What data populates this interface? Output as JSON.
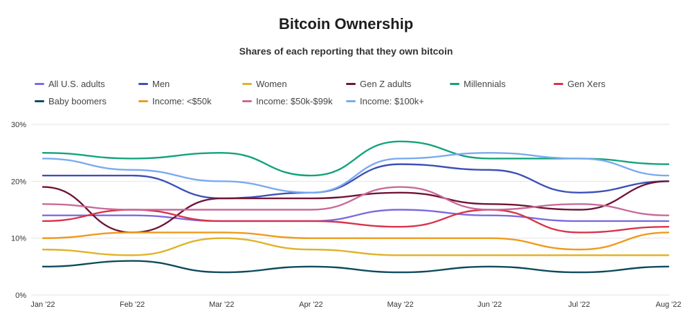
{
  "chart_data": {
    "type": "line",
    "title": "Bitcoin Ownership",
    "subtitle": "Shares of each reporting that they own bitcoin",
    "xlabel": "",
    "ylabel": "",
    "categories": [
      "Jan '22",
      "Feb '22",
      "Mar '22",
      "Apr '22",
      "May '22",
      "Jun '22",
      "Jul '22",
      "Aug '22"
    ],
    "ylim": [
      0,
      30
    ],
    "yticks": [
      0,
      10,
      20,
      30
    ],
    "ytick_labels": [
      "0%",
      "10%",
      "20%",
      "30%"
    ],
    "grid": true,
    "legend_position": "top",
    "series": [
      {
        "name": "All U.S. adults",
        "color": "#7b6ae0",
        "values": [
          14,
          14,
          13,
          13,
          15,
          14,
          13,
          13
        ]
      },
      {
        "name": "Men",
        "color": "#3c4fb8",
        "values": [
          21,
          21,
          17,
          18,
          23,
          22,
          18,
          20
        ]
      },
      {
        "name": "Women",
        "color": "#e0b22a",
        "values": [
          8,
          7,
          10,
          8,
          7,
          7,
          7,
          7
        ]
      },
      {
        "name": "Gen Z adults",
        "color": "#6e1437",
        "values": [
          19,
          11,
          17,
          17,
          18,
          16,
          15,
          20
        ]
      },
      {
        "name": "Millennials",
        "color": "#12a37a",
        "values": [
          25,
          24,
          25,
          21,
          27,
          24,
          24,
          23
        ]
      },
      {
        "name": "Gen Xers",
        "color": "#d8334a",
        "values": [
          13,
          15,
          13,
          13,
          12,
          15,
          11,
          12
        ]
      },
      {
        "name": "Baby boomers",
        "color": "#0d4a5e",
        "values": [
          5,
          6,
          4,
          5,
          4,
          5,
          4,
          5
        ]
      },
      {
        "name": "Income: <$50k",
        "color": "#ef9a1a",
        "values": [
          10,
          11,
          11,
          10,
          10,
          10,
          8,
          11
        ]
      },
      {
        "name": "Income: $50k-$99k",
        "color": "#c86a99",
        "values": [
          16,
          15,
          15,
          15,
          19,
          15,
          16,
          14
        ]
      },
      {
        "name": "Income: $100k+",
        "color": "#7aaaf0",
        "values": [
          24,
          22,
          20,
          18,
          24,
          25,
          24,
          21
        ]
      }
    ]
  }
}
